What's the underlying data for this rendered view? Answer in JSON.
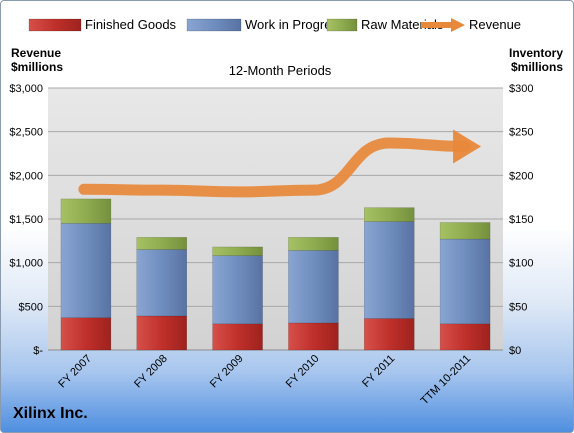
{
  "chart_data": {
    "type": "bar",
    "stacked": true,
    "subtitle": "12-Month Periods",
    "categories": [
      "FY 2007",
      "FY 2008",
      "FY 2009",
      "FY 2010",
      "FY 2011",
      "TTM 10-2011"
    ],
    "series": [
      {
        "name": "Finished Goods",
        "axis": "right",
        "color": "#c0302b",
        "values": [
          37,
          39,
          30,
          31,
          36,
          30
        ]
      },
      {
        "name": "Work in Progress",
        "axis": "right",
        "color": "#6f8dbe",
        "values": [
          108,
          76,
          78,
          83,
          111,
          97
        ]
      },
      {
        "name": "Raw Materials",
        "axis": "right",
        "color": "#8fac50",
        "values": [
          28,
          14,
          10,
          15,
          16,
          19
        ]
      },
      {
        "name": "Revenue",
        "axis": "left",
        "type": "line",
        "color": "#e8883a",
        "values": [
          1840,
          1830,
          1810,
          1830,
          2370,
          2330
        ]
      }
    ],
    "left_axis": {
      "label_line1": "Revenue",
      "label_line2": "$millions",
      "range": [
        0,
        3000
      ],
      "ticks": [
        "$-",
        "$500",
        "$1,000",
        "$1,500",
        "$2,000",
        "$2,500",
        "$3,000"
      ]
    },
    "right_axis": {
      "label_line1": "Inventory",
      "label_line2": "$millions",
      "range": [
        0,
        300
      ],
      "ticks": [
        "$0",
        "$50",
        "$100",
        "$150",
        "$200",
        "$250",
        "$300"
      ]
    },
    "grid": true,
    "legend_position": "top"
  },
  "footer": {
    "company": "Xilinx Inc."
  }
}
